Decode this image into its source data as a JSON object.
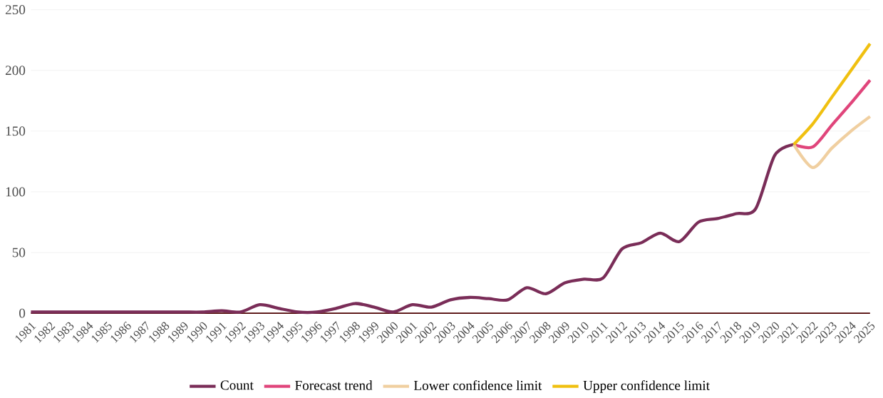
{
  "chart_data": {
    "type": "line",
    "categories": [
      "1981",
      "1982",
      "1983",
      "1984",
      "1985",
      "1986",
      "1987",
      "1988",
      "1989",
      "1990",
      "1991",
      "1992",
      "1993",
      "1994",
      "1995",
      "1996",
      "1997",
      "1998",
      "1999",
      "2000",
      "2001",
      "2002",
      "2003",
      "2004",
      "2005",
      "2006",
      "2007",
      "2008",
      "2009",
      "2010",
      "2011",
      "2012",
      "2013",
      "2014",
      "2015",
      "2016",
      "2017",
      "2018",
      "2019",
      "2020",
      "2021",
      "2022",
      "2023",
      "2024",
      "2025"
    ],
    "series": [
      {
        "name": "Count",
        "color": "#7a2d58",
        "values": [
          1,
          1,
          1,
          1,
          1,
          1,
          1,
          1,
          1,
          1,
          2,
          1,
          7,
          4,
          1,
          1,
          4,
          8,
          5,
          1,
          7,
          5,
          11,
          13,
          12,
          11,
          21,
          16,
          25,
          28,
          29,
          53,
          58,
          66,
          59,
          75,
          78,
          82,
          86,
          130,
          139,
          null,
          null,
          null,
          null
        ]
      },
      {
        "name": "Forecast trend",
        "color": "#e0457b",
        "values": [
          null,
          null,
          null,
          null,
          null,
          null,
          null,
          null,
          null,
          null,
          null,
          null,
          null,
          null,
          null,
          null,
          null,
          null,
          null,
          null,
          null,
          null,
          null,
          null,
          null,
          null,
          null,
          null,
          null,
          null,
          null,
          null,
          null,
          null,
          null,
          null,
          null,
          null,
          null,
          null,
          139,
          137,
          155,
          173,
          192
        ]
      },
      {
        "name": "Lower confidence limit",
        "color": "#f0cfa0",
        "values": [
          null,
          null,
          null,
          null,
          null,
          null,
          null,
          null,
          null,
          null,
          null,
          null,
          null,
          null,
          null,
          null,
          null,
          null,
          null,
          null,
          null,
          null,
          null,
          null,
          null,
          null,
          null,
          null,
          null,
          null,
          null,
          null,
          null,
          null,
          null,
          null,
          null,
          null,
          null,
          null,
          139,
          120,
          136,
          150,
          162
        ]
      },
      {
        "name": "Upper confidence limit",
        "color": "#f0c010",
        "values": [
          null,
          null,
          null,
          null,
          null,
          null,
          null,
          null,
          null,
          null,
          null,
          null,
          null,
          null,
          null,
          null,
          null,
          null,
          null,
          null,
          null,
          null,
          null,
          null,
          null,
          null,
          null,
          null,
          null,
          null,
          null,
          null,
          null,
          null,
          null,
          null,
          null,
          null,
          null,
          null,
          139,
          156,
          178,
          200,
          222
        ]
      }
    ],
    "ylim": [
      0,
      250
    ],
    "yticks": [
      0,
      50,
      100,
      150,
      200,
      250
    ],
    "grid": "y",
    "legend": "bottom",
    "marker": "none",
    "line_style": "solid"
  }
}
